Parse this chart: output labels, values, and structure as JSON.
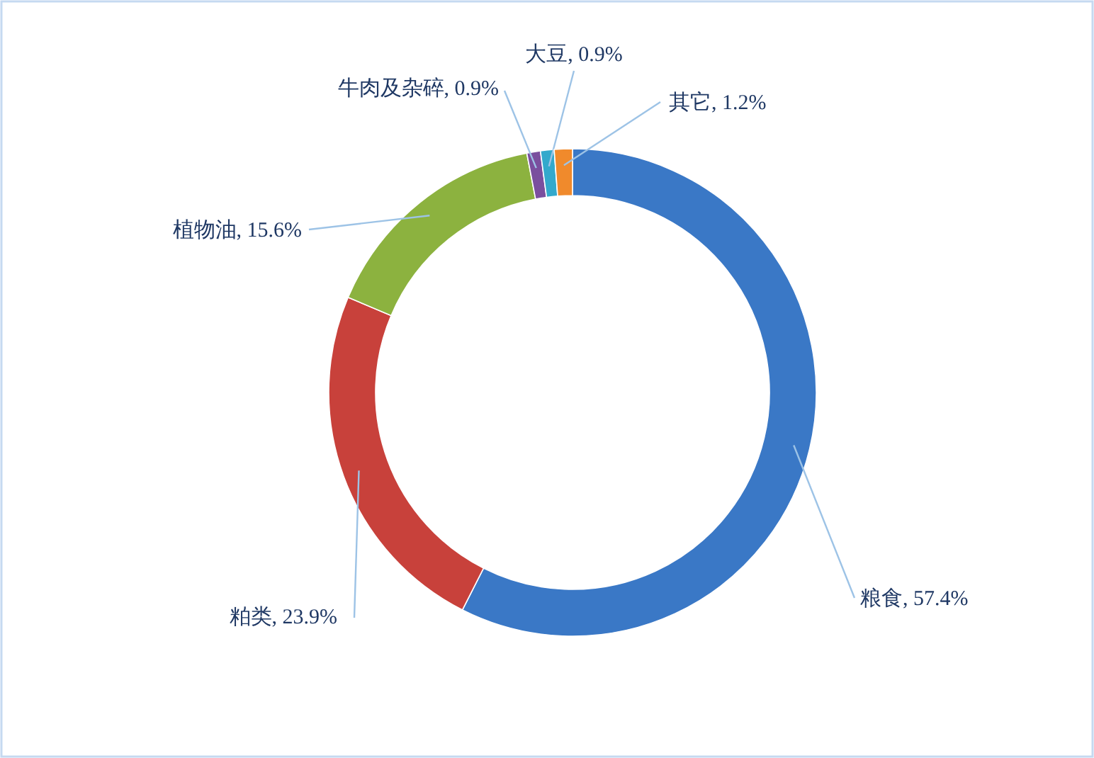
{
  "chart_data": {
    "type": "donut",
    "categories": [
      "粮食",
      "粕类",
      "植物油",
      "牛肉及杂碎",
      "大豆",
      "其它"
    ],
    "values": [
      57.4,
      23.9,
      15.6,
      0.9,
      0.9,
      1.2
    ],
    "value_labels": [
      "57.4%",
      "23.9%",
      "15.6%",
      "0.9%",
      "0.9%",
      "1.2%"
    ],
    "colors": [
      "#3a78c6",
      "#c8413b",
      "#8cb23f",
      "#7a4f9e",
      "#33a9cc",
      "#f08a2c"
    ]
  }
}
